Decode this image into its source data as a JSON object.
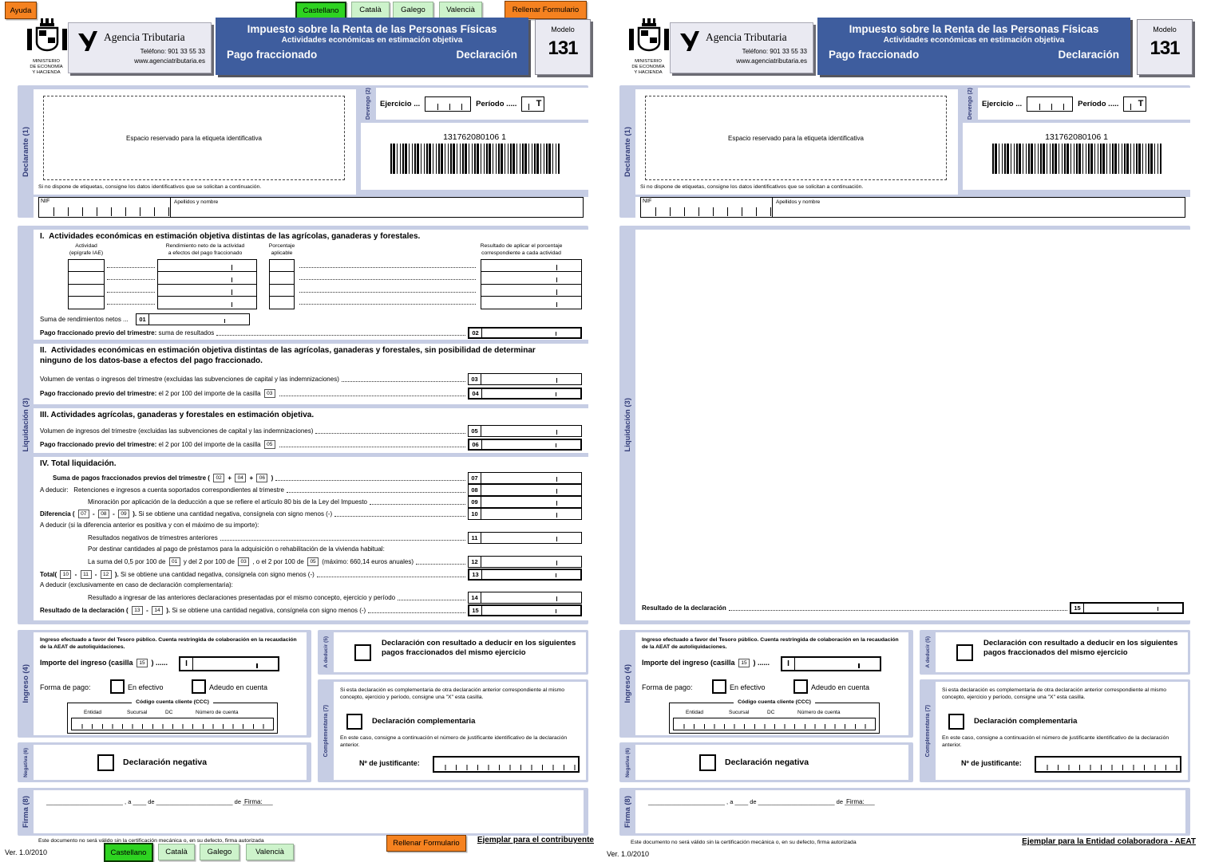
{
  "colors": {
    "header_blue": "#3e5d9e",
    "frame": "#c6cde4",
    "active_green": "#2ed321",
    "pale_green": "#cdf3cb",
    "orange": "#f58220",
    "side_text": "#333d79"
  },
  "ui": {
    "ayuda": "Ayuda",
    "langs": [
      "Castellano",
      "Català",
      "Galego",
      "Valencià"
    ],
    "fill": "Rellenar Formulario"
  },
  "header": {
    "ministry": "MINISTERIO\nDE ECONOMÍA\nY HACIENDA",
    "agency": "Agencia Tributaria",
    "phone": "Teléfono: 901 33 55 33",
    "web": "www.agenciatributaria.es",
    "title1": "Impuesto sobre la Renta de las Personas Físicas",
    "title2": "Actividades económicas en estimación objetiva",
    "title3a": "Pago fraccionado",
    "title3b": "Declaración",
    "modelo": "Modelo",
    "modelo_num": "131"
  },
  "decl": {
    "side": "Declarante (1)",
    "etiqueta": "Espacio reservado para la etiqueta identificativa",
    "aviso": "Si no dispone de etiquetas, consigne los datos identificativos que se solicitan a continuación.",
    "nif": "NIF",
    "apellidos": "Apellidos y nombre"
  },
  "dev": {
    "side": "Devengo (2)",
    "ejercicio": "Ejercicio ...",
    "periodo": "Período .....",
    "t": "T",
    "barcode": "131762080106 1"
  },
  "liq": {
    "side": "Liquidación (3)",
    "s1": {
      "title": "I.  Actividades económicas en estimación objetiva distintas de las agrícolas, ganaderas y forestales.",
      "h1": "Actividad\n(epígrafe IAE)",
      "h2": "Rendimiento neto de la actividad\na efectos del pago fraccionado",
      "h3": "Porcentaje\naplicable",
      "h4": "Resultado de aplicar el porcentaje\ncorrespondiente a cada actividad",
      "suma": "Suma de rendimientos netos ...",
      "t01": "01",
      "pago": [
        {
          "t": "Pago fraccionado previo del trimestre:",
          "b": 1
        },
        {
          "t": " suma de resultados"
        }
      ],
      "t02": "02"
    },
    "s2": {
      "title": "II.  Actividades económicas en estimación objetiva distintas de las agrícolas, ganaderas y forestales, sin posibilidad de determinar ninguno de los datos-base a efectos del pago fraccionado.",
      "r1": [
        {
          "t": "Volumen de ventas o ingresos del trimestre (excluidas las subvenciones de capital y las indemnizaciones)"
        }
      ],
      "t03": "03",
      "r2": [
        {
          "t": "Pago fraccionado previo del trimestre:",
          "b": 1
        },
        {
          "t": " el 2 por 100 del importe de la casilla "
        },
        {
          "ref": "03"
        }
      ],
      "t04": "04"
    },
    "s3": {
      "title": "III. Actividades agrícolas, ganaderas y forestales en estimación objetiva.",
      "r1": [
        {
          "t": "Volumen de ingresos del trimestre (excluidas las subvenciones de capital y las indemnizaciones)"
        }
      ],
      "t05": "05",
      "r2": [
        {
          "t": "Pago fraccionado previo del trimestre:",
          "b": 1
        },
        {
          "t": " el 2 por 100 del importe de la casilla "
        },
        {
          "ref": "05"
        }
      ],
      "t06": "06"
    },
    "s4": {
      "title": "IV. Total liquidación.",
      "r07": [
        {
          "t": "Suma de pagos fraccionados previos del trimestre ( ",
          "b": 1
        },
        {
          "ref": "02"
        },
        {
          "t": " + ",
          "b": 1
        },
        {
          "ref": "04"
        },
        {
          "t": " + ",
          "b": 1
        },
        {
          "ref": "06"
        },
        {
          "t": " )",
          "b": 1
        }
      ],
      "t07": "07",
      "r08": [
        {
          "t": "A deducir:   Retenciones e ingresos a cuenta soportados correspondientes al trimestre"
        }
      ],
      "t08": "08",
      "r09": [
        {
          "t": "Minoración por aplicación de la deducción a que se refiere el artículo 80 bis de la Ley del Impuesto"
        }
      ],
      "t09": "09",
      "r10": [
        {
          "t": "Diferencia ( ",
          "b": 1
        },
        {
          "ref": "07"
        },
        {
          "t": " - ",
          "b": 1
        },
        {
          "ref": "08"
        },
        {
          "t": " - ",
          "b": 1
        },
        {
          "ref": "09"
        },
        {
          "t": " ).",
          "b": 1
        },
        {
          "t": " Si se obtiene una cantidad negativa, consígnela con signo menos (-)"
        }
      ],
      "t10": "10",
      "l11": "A deducir (si la diferencia anterior es positiva y con el máximo de su importe):",
      "r11": [
        {
          "t": "Resultados negativos de trimestres anteriores"
        }
      ],
      "t11": "11",
      "l12": "Por destinar cantidades al pago de préstamos para la adquisición o rehabilitación de la vivienda habitual:",
      "r12": [
        {
          "t": "La suma del 0,5 por 100 de "
        },
        {
          "ref": "01"
        },
        {
          "t": " y del 2 por 100 de "
        },
        {
          "ref": "03"
        },
        {
          "t": " , o el 2 por 100 de "
        },
        {
          "ref": "05"
        },
        {
          "t": " (máximo: 660,14 euros anuales)"
        }
      ],
      "t12": "12",
      "r13": [
        {
          "t": "Total( ",
          "b": 1
        },
        {
          "ref": "10"
        },
        {
          "t": " - ",
          "b": 1
        },
        {
          "ref": "11"
        },
        {
          "t": " - ",
          "b": 1
        },
        {
          "ref": "12"
        },
        {
          "t": " ).",
          "b": 1
        },
        {
          "t": " Si se obtiene una cantidad negativa, consígnela con signo menos (-)"
        }
      ],
      "t13": "13",
      "l14": "A deducir (exclusivamente en caso de declaración complementaria):",
      "r14": [
        {
          "t": "Resultado a ingresar de las anteriores declaraciones presentadas por el mismo concepto, ejercicio y período"
        }
      ],
      "t14": "14",
      "r15": [
        {
          "t": "Resultado de la declaración ( ",
          "b": 1
        },
        {
          "ref": "13"
        },
        {
          "t": " - ",
          "b": 1
        },
        {
          "ref": "14"
        },
        {
          "t": " ).",
          "b": 1
        },
        {
          "t": " Si se obtiene una cantidad negativa, consígnela con signo menos (-)"
        }
      ],
      "t15": "15"
    },
    "right": {
      "resultado": [
        {
          "t": "Resultado de la declaración",
          "b": 1
        }
      ],
      "t15": "15"
    }
  },
  "ingreso": {
    "side": "Ingreso (4)",
    "intro": "Ingreso efectuado a favor del Tesoro público. Cuenta restringida de colaboración en la recaudación de la AEAT de autoliquidaciones.",
    "importe": [
      {
        "t": "Importe del ingreso (casilla ",
        "b": 1
      },
      {
        "ref": "15"
      },
      {
        "t": " ) ......",
        "b": 1
      }
    ],
    "i": "I",
    "forma": "Forma de pago:",
    "efectivo": "En efectivo",
    "adeudo": "Adeudo en cuenta",
    "ccc": "Código cuenta cliente (CCC)",
    "entidad": "Entidad",
    "sucursal": "Sucursal",
    "dc": "DC",
    "numero": "Número de cuenta"
  },
  "negativa": {
    "side": "Negativa (6)",
    "label": "Declaración negativa"
  },
  "deducir": {
    "side": "A deducir (5)",
    "label": "Declaración con resultado a deducir en los siguientes pagos fraccionados del mismo ejercicio"
  },
  "compl": {
    "side": "Complementaria (7)",
    "p1": "Si esta declaración es complementaria de otra declaración anterior correspondiente al mismo concepto, ejercicio y período, consigne una \"X\" esta casilla.",
    "label": "Declaración complementaria",
    "p2": "En este caso, consigne a continuación el número de justificante identificativo de la declaración anterior.",
    "just": "Nº de justificante:"
  },
  "firma": {
    "side": "Firma (8)",
    "line": "_______________________ , a  ____ de   _______________________  de _________",
    "firma": "Firma:"
  },
  "footer": {
    "legal": "Este documento no será válido sin la certificación mecánica o, en su defecto, firma autorizada",
    "version": "Ver. 1.0/2010",
    "copy_left": "Ejemplar para el contribuyente",
    "copy_right": "Ejemplar para la Entidad colaboradora - AEAT"
  }
}
